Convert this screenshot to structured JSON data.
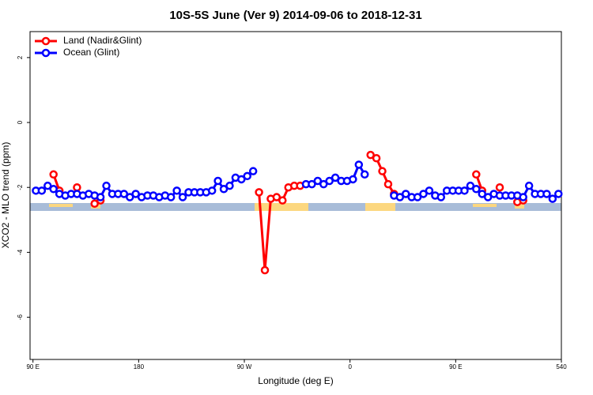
{
  "chart_data": {
    "type": "line",
    "title": "10S-5S June (Ver 9)   2014-09-06 to 2018-12-31",
    "x_label": "Longitude (deg E)",
    "y_label": "XCO2 - MLO trend (ppm)",
    "xlim": [
      87.5,
      540
    ],
    "ylim": [
      -7.3,
      2.8
    ],
    "xticks": [
      {
        "value": 90,
        "label": "90 E"
      },
      180,
      {
        "value": 270,
        "label": "90 W"
      },
      {
        "value": 360,
        "label": "0"
      },
      {
        "value": 450,
        "label": "90 E"
      },
      540
    ],
    "yticks": [
      -6,
      -4,
      -2,
      0,
      2
    ],
    "legend": "top-left",
    "series": [
      {
        "name": "Land (Nadir&Glint)",
        "color": "#ff0000",
        "x": [
          107.5,
          112.5,
          120,
          127.5,
          135,
          142.5,
          147.5,
          215,
          282.5,
          287.5,
          292.5,
          297.5,
          302.5,
          307.5,
          312.5,
          317.5,
          350,
          377.5,
          382.5,
          387.5,
          392.5,
          397.5,
          430,
          467.5,
          472.5,
          480,
          487.5,
          495,
          502.5,
          507.5
        ],
        "values": [
          -1.6,
          -2.1,
          null,
          -2.0,
          null,
          -2.5,
          -2.4,
          null,
          -2.15,
          -4.55,
          -2.35,
          -2.3,
          -2.4,
          -2.0,
          -1.95,
          -1.95,
          null,
          -1.0,
          -1.1,
          -1.5,
          -1.9,
          -2.2,
          null,
          -1.6,
          -2.1,
          null,
          -2.0,
          null,
          -2.45,
          -2.4
        ]
      },
      {
        "name": "Ocean (Glint)",
        "color": "#0000ff",
        "x": [
          92.5,
          97.5,
          102.5,
          107.5,
          112.5,
          117.5,
          122.5,
          127.5,
          132.5,
          137.5,
          142.5,
          147.5,
          152.5,
          157.5,
          162.5,
          167.5,
          172.5,
          177.5,
          182.5,
          187.5,
          192.5,
          197.5,
          202.5,
          207.5,
          212.5,
          217.5,
          222.5,
          227.5,
          232.5,
          237.5,
          242.5,
          247.5,
          252.5,
          257.5,
          262.5,
          267.5,
          272.5,
          277.5,
          300,
          322.5,
          327.5,
          332.5,
          337.5,
          342.5,
          347.5,
          352.5,
          357.5,
          362.5,
          367.5,
          372.5,
          385,
          397.5,
          402.5,
          407.5,
          412.5,
          417.5,
          422.5,
          427.5,
          432.5,
          437.5,
          442.5,
          447.5,
          452.5,
          457.5,
          462.5,
          467.5,
          472.5,
          477.5,
          482.5,
          487.5,
          492.5,
          497.5,
          502.5,
          507.5,
          512.5,
          517.5,
          522.5,
          527.5,
          532.5,
          537.5
        ],
        "values": [
          -2.1,
          -2.1,
          -1.95,
          -2.05,
          -2.2,
          -2.25,
          -2.2,
          -2.2,
          -2.25,
          -2.2,
          -2.25,
          -2.3,
          -1.95,
          -2.2,
          -2.2,
          -2.2,
          -2.3,
          -2.2,
          -2.3,
          -2.25,
          -2.25,
          -2.3,
          -2.25,
          -2.3,
          -2.1,
          -2.3,
          -2.15,
          -2.15,
          -2.15,
          -2.15,
          -2.1,
          -1.8,
          -2.05,
          -1.95,
          -1.7,
          -1.75,
          -1.65,
          -1.5,
          null,
          -1.9,
          -1.9,
          -1.8,
          -1.9,
          -1.8,
          -1.7,
          -1.8,
          -1.8,
          -1.75,
          -1.3,
          -1.6,
          null,
          -2.25,
          -2.3,
          -2.2,
          -2.3,
          -2.3,
          -2.2,
          -2.1,
          -2.25,
          -2.3,
          -2.1,
          -2.1,
          -2.1,
          -2.1,
          -1.95,
          -2.05,
          -2.2,
          -2.3,
          -2.2,
          -2.25,
          -2.25,
          -2.25,
          -2.25,
          -2.3,
          -1.95,
          -2.2,
          -2.2,
          -2.2,
          -2.35,
          -2.2
        ]
      }
    ]
  }
}
